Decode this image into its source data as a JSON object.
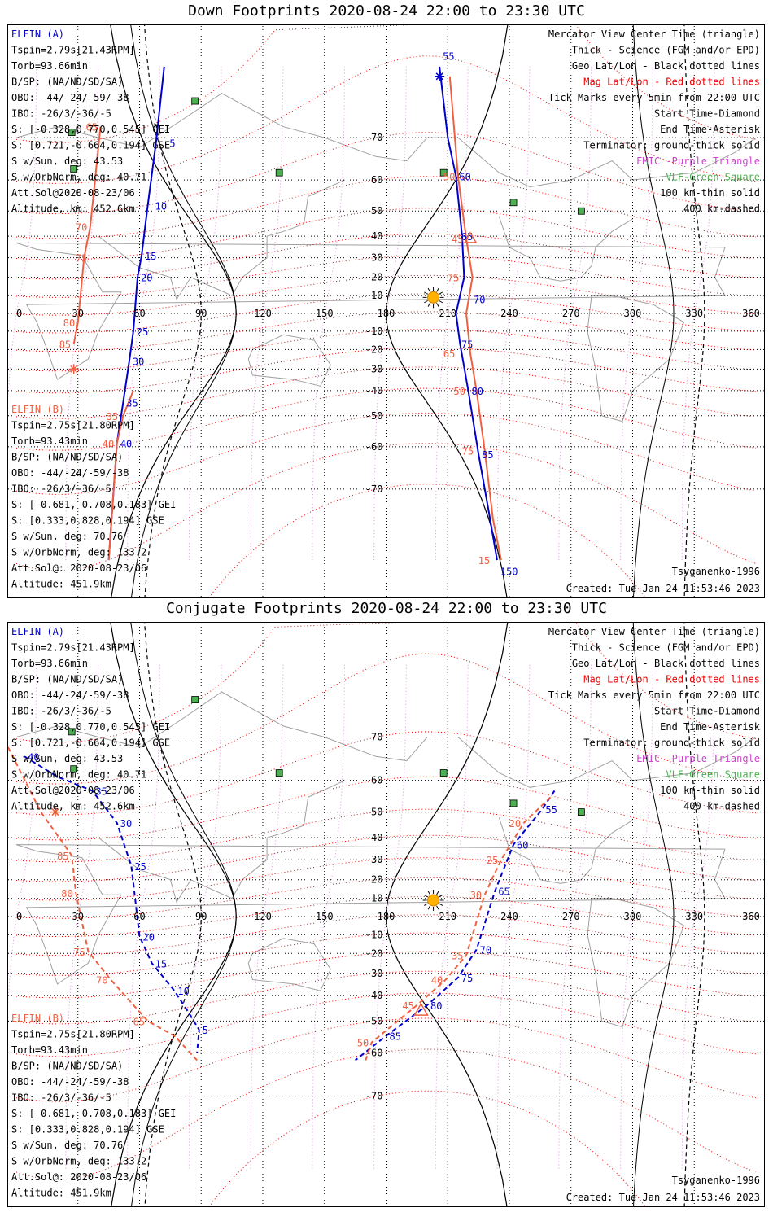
{
  "colors": {
    "elfin_a": "#0000cc",
    "elfin_b": "#f06040",
    "mag_grid": "#ee0000",
    "geo_grid": "#000000",
    "coast": "#a0a0a0",
    "vlf": "#4caf50",
    "emic": "#cc44cc",
    "terminator": "#000000"
  },
  "x_axis_ticks": [
    "0",
    "30",
    "60",
    "90",
    "120",
    "150",
    "180",
    "210",
    "240",
    "270",
    "300",
    "330",
    "360"
  ],
  "y_axis_ticks": [
    "70",
    "60",
    "50",
    "40",
    "30",
    "20",
    "10",
    "-10",
    "-20",
    "-30",
    "-40",
    "-50",
    "-60",
    "-70"
  ],
  "panels": [
    {
      "title": "Down Footprints 2020-08-24 22:00 to 23:30 UTC",
      "elfin_a": {
        "name": "ELFIN (A)",
        "tspin": "Tspin=2.79s[21.43RPM]",
        "torb": "Torb=93.66min",
        "bsp": "B/SP: (NA/ND/SD/SA)",
        "obo": "OBO: -44/-24/-59/-38",
        "ibo": "IBO: -26/3/-36/-5",
        "s_gei": "S: [-0.328,0.770,0.545] GEI",
        "s_gse": "S: [0.721,-0.664,0.194] GSE",
        "s_sun": "S w/Sun, deg: 43.53",
        "s_orbnorm": "S w/OrbNorm, deg: 40.71",
        "attsol": "Att.Sol@2020-08-23/06",
        "altitude": "Altitude, km: 452.6km"
      },
      "elfin_b": {
        "name": "ELFIN (B)",
        "tspin": "Tspin=2.75s[21.80RPM]",
        "torb": "Torb=93.43min",
        "bsp": "B/SP: (NA/ND/SD/SA)",
        "obo": "OBO: -44/-24/-59/-38",
        "ibo": "IBO: -26/3/-36/-5",
        "s_gei": "S: [-0.681,-0.708,0.183] GEI",
        "s_gse": "S: [0.333,0.828,0.194] GSE",
        "s_sun": "S w/Sun, deg: 70.76",
        "s_orbnorm": "S w/OrbNorm, deg: 133.2",
        "attsol": "Att.Sol@: 2020-08-23/06",
        "altitude": "Altitude: 451.9km"
      },
      "legend": [
        "Mercator View Center Time (triangle)",
        "Thick - Science (FGM and/or EPD)",
        "Geo Lat/Lon - Black dotted lines",
        "Mag Lat/Lon - Red dotted lines",
        "Tick Marks every 5min from 22:00 UTC",
        "Start Time-Diamond",
        "End Time-Asterisk",
        "Terminator: ground-thick solid",
        "EMIC -Purple Triangle",
        "VLF-Green Square",
        "100 km-thin solid",
        "400 km-dashed"
      ],
      "model": "Tsyganenko-1996",
      "created": "Created: Tue Jan 24 11:53:46 2023",
      "track_a_ticks": [
        {
          "label": "5",
          "lon": 73,
          "lat": 69
        },
        {
          "label": "10",
          "lon": 66,
          "lat": 52
        },
        {
          "label": "15",
          "lon": 61,
          "lat": 31
        },
        {
          "label": "20",
          "lon": 59,
          "lat": 20
        },
        {
          "label": "25",
          "lon": 57,
          "lat": -10
        },
        {
          "label": "30",
          "lon": 55,
          "lat": -26
        },
        {
          "label": "35",
          "lon": 52,
          "lat": -45
        },
        {
          "label": "40",
          "lon": 49,
          "lat": -59
        },
        {
          "label": "55",
          "lon": 206,
          "lat": 81
        },
        {
          "label": "60",
          "lon": 214,
          "lat": 61
        },
        {
          "label": "65",
          "lon": 215,
          "lat": 40
        },
        {
          "label": "70",
          "lon": 221,
          "lat": 8
        },
        {
          "label": "75",
          "lon": 215,
          "lat": -17
        },
        {
          "label": "80",
          "lon": 220,
          "lat": -40
        },
        {
          "label": "85",
          "lon": 225,
          "lat": -62
        },
        {
          "label": "150",
          "lon": 234,
          "lat": -81
        }
      ],
      "track_b_ticks": [
        {
          "label": "65",
          "lon": 41,
          "lat": 72
        },
        {
          "label": "70",
          "lon": 36,
          "lat": 44
        },
        {
          "label": "75",
          "lon": 36,
          "lat": 30
        },
        {
          "label": "80",
          "lon": 30,
          "lat": -5
        },
        {
          "label": "85",
          "lon": 28,
          "lat": -17
        },
        {
          "label": "35",
          "lon": 51,
          "lat": -50
        },
        {
          "label": "40",
          "lon": 49,
          "lat": -59
        },
        {
          "label": "50",
          "lon": 215,
          "lat": 61
        },
        {
          "label": "45",
          "lon": 219,
          "lat": 39
        },
        {
          "label": "75",
          "lon": 217,
          "lat": 20
        },
        {
          "label": "65",
          "lon": 215,
          "lat": -22
        },
        {
          "label": "50",
          "lon": 220,
          "lat": -40
        },
        {
          "label": "75",
          "lon": 224,
          "lat": -61
        },
        {
          "label": "15",
          "lon": 232,
          "lat": -80
        }
      ]
    },
    {
      "title": "Conjugate Footprints 2020-08-24 22:00 to 23:30 UTC",
      "elfin_a": {
        "name": "ELFIN (A)",
        "tspin": "Tspin=2.79s[21.43RPM]",
        "torb": "Torb=93.66min",
        "bsp": "B/SP: (NA/ND/SD/SA)",
        "obo": "OBO: -44/-24/-59/-38",
        "ibo": "IBO: -26/3/-36/-5",
        "s_gei": "S: [-0.328,0.770,0.545] GEI",
        "s_gse": "S: [0.721,-0.664,0.194] GSE",
        "s_sun": "S w/Sun, deg: 43.53",
        "s_orbnorm": "S w/OrbNorm, deg: 40.71",
        "attsol": "Att.Sol@2020-08-23/06",
        "altitude": "Altitude, km: 452.6km"
      },
      "elfin_b": {
        "name": "ELFIN (B)",
        "tspin": "Tspin=2.75s[21.80RPM]",
        "torb": "Torb=93.43min",
        "bsp": "B/SP: (NA/ND/SD/SA)",
        "obo": "OBO: -44/-24/-59/-38",
        "ibo": "IBO: -26/3/-36/-5",
        "s_gei": "S: [-0.681,-0.708,0.183] GEI",
        "s_gse": "S: [0.333,0.828,0.194] GSE",
        "s_sun": "S w/Sun, deg: 70.76",
        "s_orbnorm": "S w/OrbNorm, deg: 133.2",
        "attsol": "Att.Sol@: 2020-08-23/06",
        "altitude": "Altitude: 451.9km"
      },
      "legend": [
        "Mercator View Center Time (triangle)",
        "Thick - Science (FGM and/or EPD)",
        "Geo Lat/Lon - Black dotted lines",
        "Mag Lat/Lon - Red dotted lines",
        "Tick Marks every 5min from 22:00 UTC",
        "Start Time-Diamond",
        "End Time-Asterisk",
        "Terminator: ground-thick solid",
        "EMIC -Purple Triangle",
        "VLF-Green Square",
        "100 km-thin solid",
        "400 km-dashed"
      ],
      "model": "Tsyganenko-1996",
      "created": "Created: Tue Jan 24 11:53:46 2023",
      "track_a_ticks": [
        {
          "label": "40",
          "lon": 4,
          "lat": 66
        },
        {
          "label": "35",
          "lon": 37,
          "lat": 57
        },
        {
          "label": "30",
          "lon": 49,
          "lat": 46
        },
        {
          "label": "25",
          "lon": 56,
          "lat": 27
        },
        {
          "label": "20",
          "lon": 60,
          "lat": -11
        },
        {
          "label": "15",
          "lon": 66,
          "lat": -25
        },
        {
          "label": "10",
          "lon": 77,
          "lat": -38
        },
        {
          "label": "5",
          "lon": 89,
          "lat": -53
        },
        {
          "label": "55",
          "lon": 256,
          "lat": 51
        },
        {
          "label": "60",
          "lon": 242,
          "lat": 37
        },
        {
          "label": "65",
          "lon": 233,
          "lat": 14
        },
        {
          "label": "70",
          "lon": 224,
          "lat": -18
        },
        {
          "label": "75",
          "lon": 215,
          "lat": -32
        },
        {
          "label": "80",
          "lon": 200,
          "lat": -44
        },
        {
          "label": "85",
          "lon": 180,
          "lat": -55
        }
      ],
      "track_b_ticks": [
        {
          "label": "5",
          "lon": -4,
          "lat": 68
        },
        {
          "label": "85",
          "lon": 27,
          "lat": 32
        },
        {
          "label": "80",
          "lon": 29,
          "lat": 13
        },
        {
          "label": "75",
          "lon": 35,
          "lat": -19
        },
        {
          "label": "70",
          "lon": 46,
          "lat": -33
        },
        {
          "label": "65",
          "lon": 64,
          "lat": -50
        },
        {
          "label": "20",
          "lon": 247,
          "lat": 46
        },
        {
          "label": "25",
          "lon": 236,
          "lat": 30
        },
        {
          "label": "30",
          "lon": 228,
          "lat": 12
        },
        {
          "label": "35",
          "lon": 219,
          "lat": -21
        },
        {
          "label": "40",
          "lon": 209,
          "lat": -33
        },
        {
          "label": "45",
          "lon": 195,
          "lat": -44
        },
        {
          "label": "50",
          "lon": 173,
          "lat": -57
        }
      ]
    }
  ],
  "chart_data": [
    {
      "type": "map",
      "title": "Down Footprints 2020-08-24 22:00 to 23:30 UTC",
      "x_range_deg": [
        0,
        360
      ],
      "lat_range_deg": [
        -82,
        82
      ],
      "projection": "mercator",
      "series": [
        {
          "name": "ELFIN (A)",
          "lon": [
            72,
            68,
            64,
            61,
            59,
            57,
            55,
            52,
            49,
            45
          ],
          "lat": [
            80,
            69,
            52,
            31,
            20,
            -10,
            -26,
            -45,
            -59,
            -80
          ]
        },
        {
          "name": "ELFIN (A)",
          "lon": [
            206,
            210,
            214,
            217,
            218,
            214,
            216,
            220,
            225,
            230,
            234
          ],
          "lat": [
            80,
            70,
            61,
            40,
            20,
            0,
            -17,
            -40,
            -62,
            -74,
            -80
          ]
        },
        {
          "name": "ELFIN (B)",
          "lon": [
            41,
            36,
            33,
            30,
            28
          ],
          "lat": [
            72,
            44,
            30,
            -5,
            -17
          ]
        },
        {
          "name": "ELFIN (B)",
          "lon": [
            57,
            52,
            49,
            45
          ],
          "lat": [
            -40,
            -50,
            -59,
            -80
          ]
        },
        {
          "name": "ELFIN (B)",
          "lon": [
            211,
            215,
            219,
            222,
            219,
            221,
            224,
            228,
            232,
            236
          ],
          "lat": [
            79,
            61,
            39,
            20,
            0,
            -22,
            -40,
            -61,
            -75,
            -80
          ]
        }
      ],
      "vlf_sites": [
        {
          "lon": 27,
          "lat": 71
        },
        {
          "lon": 87,
          "lat": 76
        },
        {
          "lon": 128,
          "lat": 62
        },
        {
          "lon": 28,
          "lat": 63
        },
        {
          "lon": 208,
          "lat": 62
        },
        {
          "lon": 242,
          "lat": 53
        },
        {
          "lon": 275,
          "lat": 50
        }
      ]
    },
    {
      "type": "map",
      "title": "Conjugate Footprints 2020-08-24 22:00 to 23:30 UTC",
      "x_range_deg": [
        0,
        360
      ],
      "lat_range_deg": [
        -82,
        82
      ],
      "projection": "mercator",
      "series": [
        {
          "name": "ELFIN (A)",
          "lon": [
            4,
            20,
            37,
            49,
            56,
            60,
            66,
            77,
            84,
            89,
            88
          ],
          "lat": [
            66,
            61,
            57,
            46,
            27,
            -11,
            -25,
            -38,
            -47,
            -53,
            -60
          ]
        },
        {
          "name": "ELFIN (A)",
          "lon": [
            262,
            256,
            242,
            233,
            224,
            215,
            200,
            180,
            165
          ],
          "lat": [
            57,
            51,
            37,
            14,
            -18,
            -32,
            -44,
            -55,
            -62
          ]
        },
        {
          "name": "ELFIN (B)",
          "lon": [
            -4,
            12,
            27,
            29,
            35,
            46,
            64,
            77,
            88
          ],
          "lat": [
            68,
            50,
            32,
            13,
            -19,
            -33,
            -50,
            -55,
            -62
          ]
        },
        {
          "name": "ELFIN (B)",
          "lon": [
            260,
            247,
            236,
            228,
            219,
            209,
            195,
            173,
            170
          ],
          "lat": [
            55,
            46,
            30,
            12,
            -21,
            -33,
            -44,
            -57,
            -62
          ]
        }
      ],
      "vlf_sites": [
        {
          "lon": 27,
          "lat": 71
        },
        {
          "lon": 87,
          "lat": 76
        },
        {
          "lon": 128,
          "lat": 62
        },
        {
          "lon": 28,
          "lat": 63
        },
        {
          "lon": 208,
          "lat": 62
        },
        {
          "lon": 242,
          "lat": 53
        },
        {
          "lon": 275,
          "lat": 50
        }
      ]
    }
  ]
}
